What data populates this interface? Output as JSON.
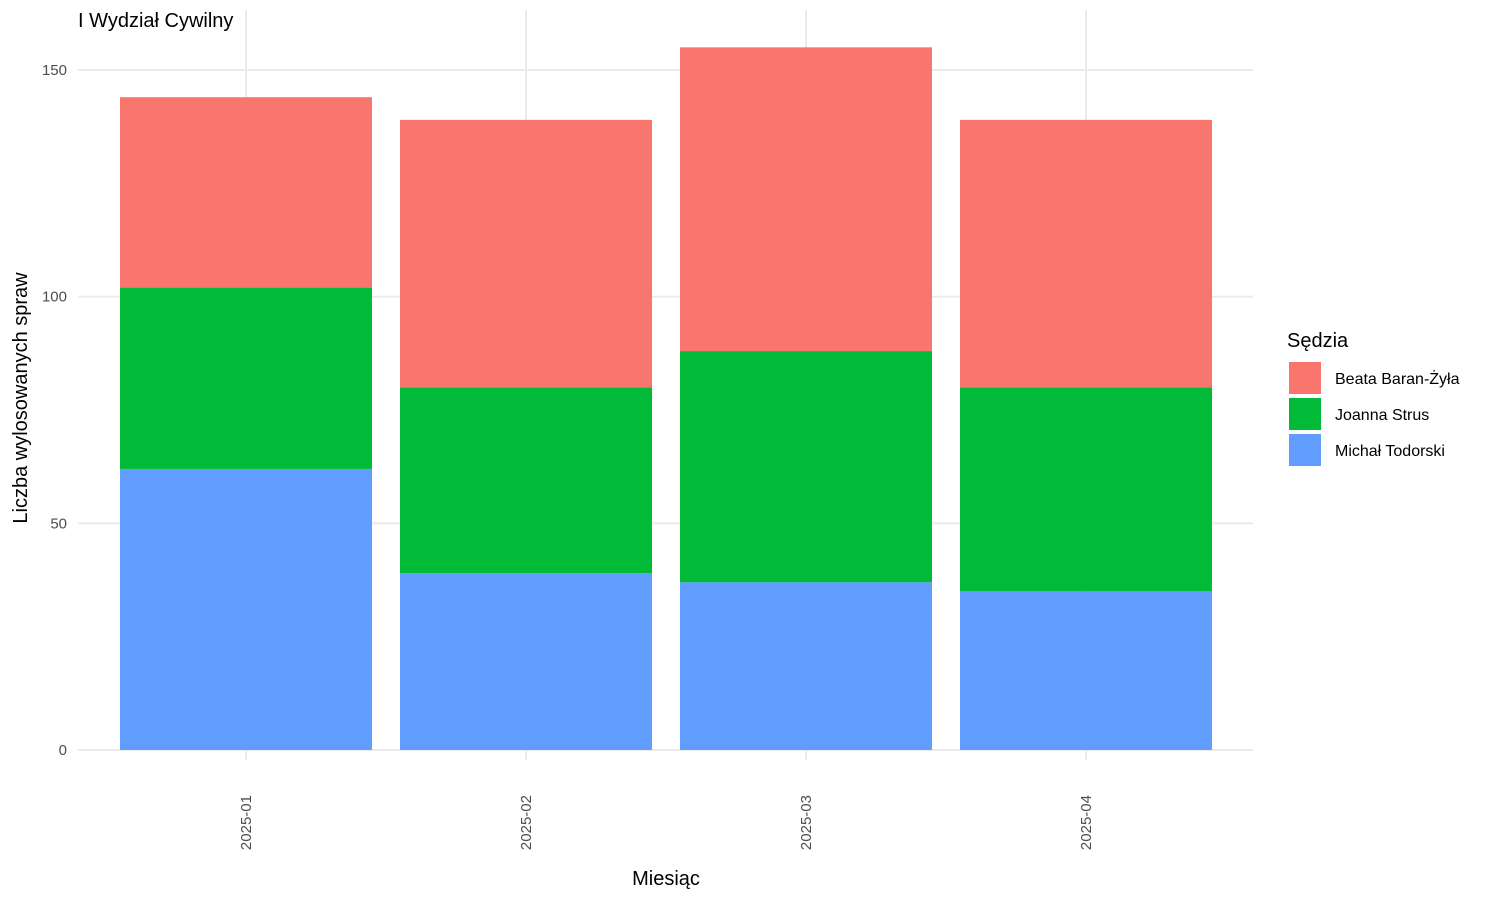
{
  "chart_data": {
    "type": "bar",
    "stacked": true,
    "title": "I Wydział Cywilny",
    "xlabel": "Miesiąc",
    "ylabel": "Liczba wylosowanych spraw",
    "categories": [
      "2025-01",
      "2025-02",
      "2025-03",
      "2025-04"
    ],
    "series": [
      {
        "name": "Michał Todorski",
        "color": "#619CFF",
        "values": [
          62,
          39,
          37,
          35
        ]
      },
      {
        "name": "Joanna Strus",
        "color": "#00BA38",
        "values": [
          40,
          41,
          51,
          45
        ]
      },
      {
        "name": "Beata Baran-Żyła",
        "color": "#F8766D",
        "values": [
          42,
          59,
          67,
          59
        ]
      }
    ],
    "ylim": [
      0,
      160
    ],
    "yticks": [
      0,
      50,
      100,
      150
    ],
    "grid": true,
    "legend": {
      "title": "Sędzia",
      "placement": "right",
      "order": [
        "Beata Baran-Żyła",
        "Joanna Strus",
        "Michał Todorski"
      ]
    }
  }
}
